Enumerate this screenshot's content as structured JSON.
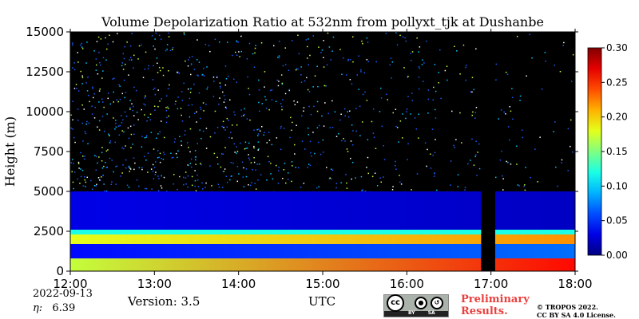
{
  "chart_data": {
    "type": "heatmap",
    "title": "Volume Depolarization Ratio at 532nm from pollyxt_tjk at Dushanbe",
    "xlabel": "UTC",
    "ylabel": "Height (m)",
    "x_ticks": [
      "12:00",
      "13:00",
      "14:00",
      "15:00",
      "16:00",
      "17:00",
      "18:00"
    ],
    "xlim": [
      "12:00",
      "18:00"
    ],
    "y_ticks": [
      "0",
      "2500",
      "5000",
      "7500",
      "10000",
      "12500",
      "15000"
    ],
    "ylim": [
      0,
      15000
    ],
    "colorbar": {
      "ticks": [
        "0.00",
        "0.05",
        "0.10",
        "0.15",
        "0.20",
        "0.25",
        "0.30"
      ],
      "range": [
        0.0,
        0.3
      ],
      "colormap": "jet"
    },
    "layers": [
      {
        "bottom": 0,
        "top": 800,
        "value_start": 0.17,
        "value_end": 0.26
      },
      {
        "bottom": 800,
        "top": 1700,
        "value_start": 0.04,
        "value_end": 0.07
      },
      {
        "bottom": 1700,
        "top": 2300,
        "value_start": 0.18,
        "value_end": 0.22
      },
      {
        "bottom": 2300,
        "top": 2600,
        "value_start": 0.12,
        "value_end": 0.12
      },
      {
        "bottom": 2600,
        "top": 5000,
        "value_start": 0.03,
        "value_end": 0.02
      }
    ],
    "no_data_gap": {
      "start": "16:53",
      "end": "17:03"
    }
  },
  "footer": {
    "date": "2022-09-13",
    "eta_label": "η:",
    "eta_value": "6.39",
    "version": "Version: 3.5",
    "preliminary_line1": "Preliminary",
    "preliminary_line2": "Results.",
    "copyright_line1": "© TROPOS 2022.",
    "copyright_line2": "CC BY SA 4.0 License.",
    "badge_labels": {
      "cc": "cc",
      "by": "BY",
      "sa": "SA"
    }
  }
}
